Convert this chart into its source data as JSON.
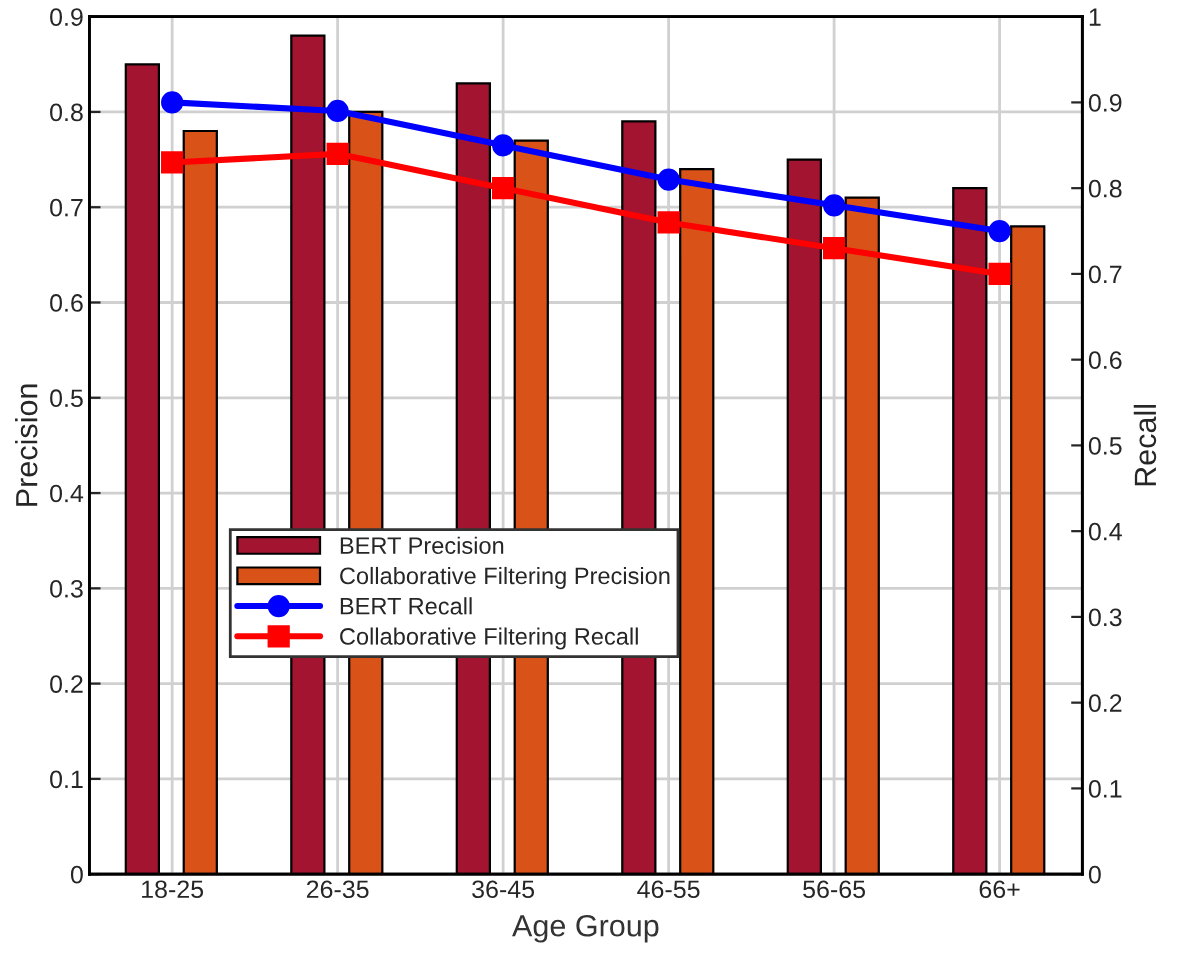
{
  "chart_data": {
    "type": "bar",
    "xlabel": "Age Group",
    "ylabel": "Precision",
    "y2label": "Recall",
    "categories": [
      "18-25",
      "26-35",
      "36-45",
      "46-55",
      "56-65",
      "66+"
    ],
    "series": [
      {
        "name": "BERT Precision",
        "color": "#a2142f",
        "values": [
          0.85,
          0.88,
          0.83,
          0.79,
          0.75,
          0.72
        ]
      },
      {
        "name": "Collaborative Filtering Precision",
        "color": "#d95319",
        "values": [
          0.78,
          0.8,
          0.77,
          0.74,
          0.71,
          0.68
        ]
      },
      {
        "name": "BERT Recall",
        "type": "line",
        "axis": "y2",
        "color": "#0000ff",
        "marker": "circle",
        "values": [
          0.9,
          0.89,
          0.85,
          0.81,
          0.78,
          0.75
        ]
      },
      {
        "name": "Collaborative Filtering Recall",
        "type": "line",
        "axis": "y2",
        "color": "#ff0000",
        "marker": "square",
        "values": [
          0.83,
          0.84,
          0.8,
          0.76,
          0.73,
          0.7
        ]
      }
    ],
    "ylim": [
      0,
      0.9
    ],
    "yticks": [
      0,
      0.1,
      0.2,
      0.3,
      0.4,
      0.5,
      0.6,
      0.7,
      0.8,
      0.9
    ],
    "y2lim": [
      0,
      1
    ],
    "y2ticks": [
      0,
      0.1,
      0.2,
      0.3,
      0.4,
      0.5,
      0.6,
      0.7,
      0.8,
      0.9,
      1
    ],
    "grid": true,
    "legend": "bottom left"
  }
}
